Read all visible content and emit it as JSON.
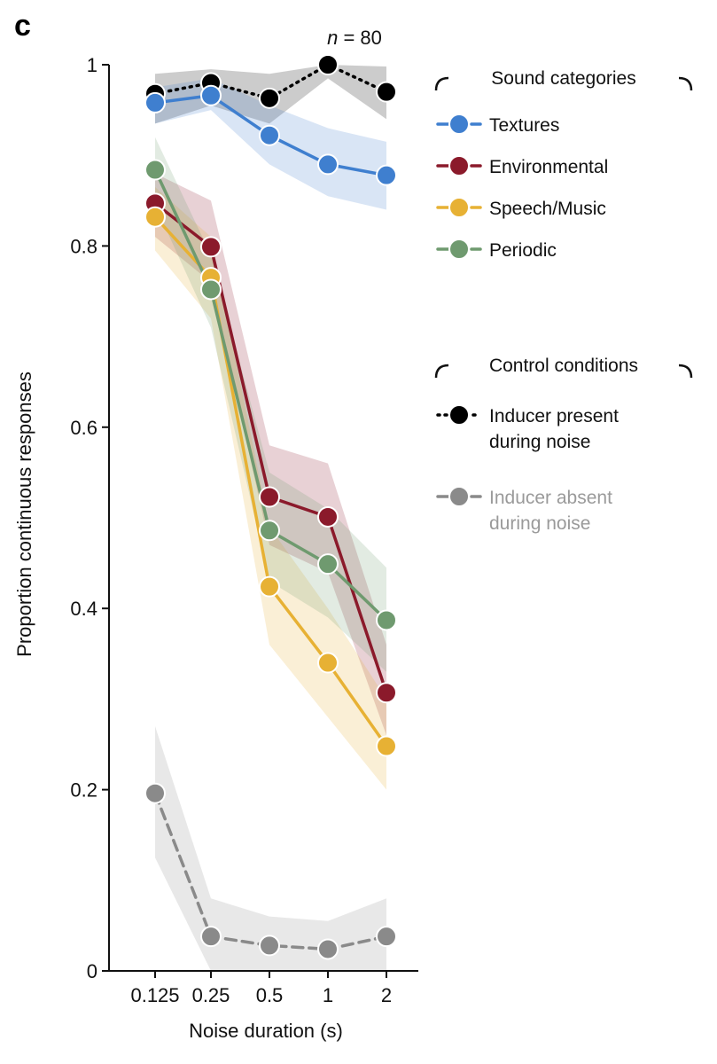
{
  "panel_label": "c",
  "annotation": {
    "prefix": "n",
    "suffix": " = 80"
  },
  "legend": {
    "group1_title": "Sound categories",
    "group2_title": "Control conditions"
  },
  "chart_data": {
    "type": "line",
    "title": "",
    "xlabel": "Noise duration (s)",
    "ylabel": "Proportion continuous responses",
    "categories": [
      "0.125",
      "0.25",
      "0.5",
      "1",
      "2"
    ],
    "ylim": [
      0,
      1
    ],
    "yticks": [
      "0",
      "0.2",
      "0.4",
      "0.6",
      "0.8",
      "1"
    ],
    "grid": false,
    "legend_position": "top-right",
    "series": [
      {
        "name": "Inducer present during noise",
        "name_lines": [
          "Inducer present",
          "during noise"
        ],
        "group": "Control conditions",
        "color": "#000000",
        "text_color": "#111111",
        "dash": "dotted",
        "values": [
          0.968,
          0.98,
          0.963,
          1.0,
          0.97
        ],
        "lower": [
          0.935,
          0.955,
          0.935,
          0.985,
          0.94
        ],
        "upper": [
          0.99,
          0.995,
          0.99,
          1.0,
          0.998
        ]
      },
      {
        "name": "Textures",
        "name_lines": [
          "Textures"
        ],
        "group": "Sound categories",
        "color": "#3f7fcf",
        "text_color": "#111111",
        "dash": "dashed",
        "values": [
          0.958,
          0.966,
          0.922,
          0.89,
          0.878
        ],
        "lower": [
          0.935,
          0.95,
          0.89,
          0.855,
          0.84
        ],
        "upper": [
          0.975,
          0.985,
          0.955,
          0.93,
          0.915
        ]
      },
      {
        "name": "Environmental",
        "name_lines": [
          "Environmental"
        ],
        "group": "Sound categories",
        "color": "#8b1a2b",
        "text_color": "#111111",
        "dash": "dashed",
        "values": [
          0.847,
          0.799,
          0.523,
          0.501,
          0.307
        ],
        "lower": [
          0.81,
          0.76,
          0.47,
          0.44,
          0.26
        ],
        "upper": [
          0.88,
          0.85,
          0.58,
          0.56,
          0.36
        ]
      },
      {
        "name": "Speech/Music",
        "name_lines": [
          "Speech/Music"
        ],
        "group": "Sound categories",
        "color": "#e7b134",
        "text_color": "#111111",
        "dash": "dashed",
        "values": [
          0.832,
          0.765,
          0.424,
          0.34,
          0.248
        ],
        "lower": [
          0.795,
          0.72,
          0.36,
          0.28,
          0.2
        ],
        "upper": [
          0.865,
          0.81,
          0.49,
          0.4,
          0.3
        ]
      },
      {
        "name": "Periodic",
        "name_lines": [
          "Periodic"
        ],
        "group": "Sound categories",
        "color": "#6f9a6f",
        "text_color": "#111111",
        "dash": "dashed",
        "values": [
          0.884,
          0.752,
          0.486,
          0.449,
          0.387
        ],
        "lower": [
          0.845,
          0.71,
          0.43,
          0.39,
          0.33
        ],
        "upper": [
          0.92,
          0.79,
          0.55,
          0.51,
          0.445
        ]
      },
      {
        "name": "Inducer absent during noise",
        "name_lines": [
          "Inducer absent",
          "during noise"
        ],
        "group": "Control conditions",
        "color": "#8a8a8a",
        "text_color": "#9a9a9a",
        "dash": "dashed",
        "values": [
          0.196,
          0.038,
          0.028,
          0.024,
          0.038
        ],
        "lower": [
          0.125,
          0.0,
          0.0,
          0.0,
          0.0
        ],
        "upper": [
          0.27,
          0.08,
          0.06,
          0.055,
          0.08
        ]
      }
    ],
    "legend_order": [
      "Textures",
      "Environmental",
      "Speech/Music",
      "Periodic",
      "Inducer present during noise",
      "Inducer absent during noise"
    ]
  }
}
